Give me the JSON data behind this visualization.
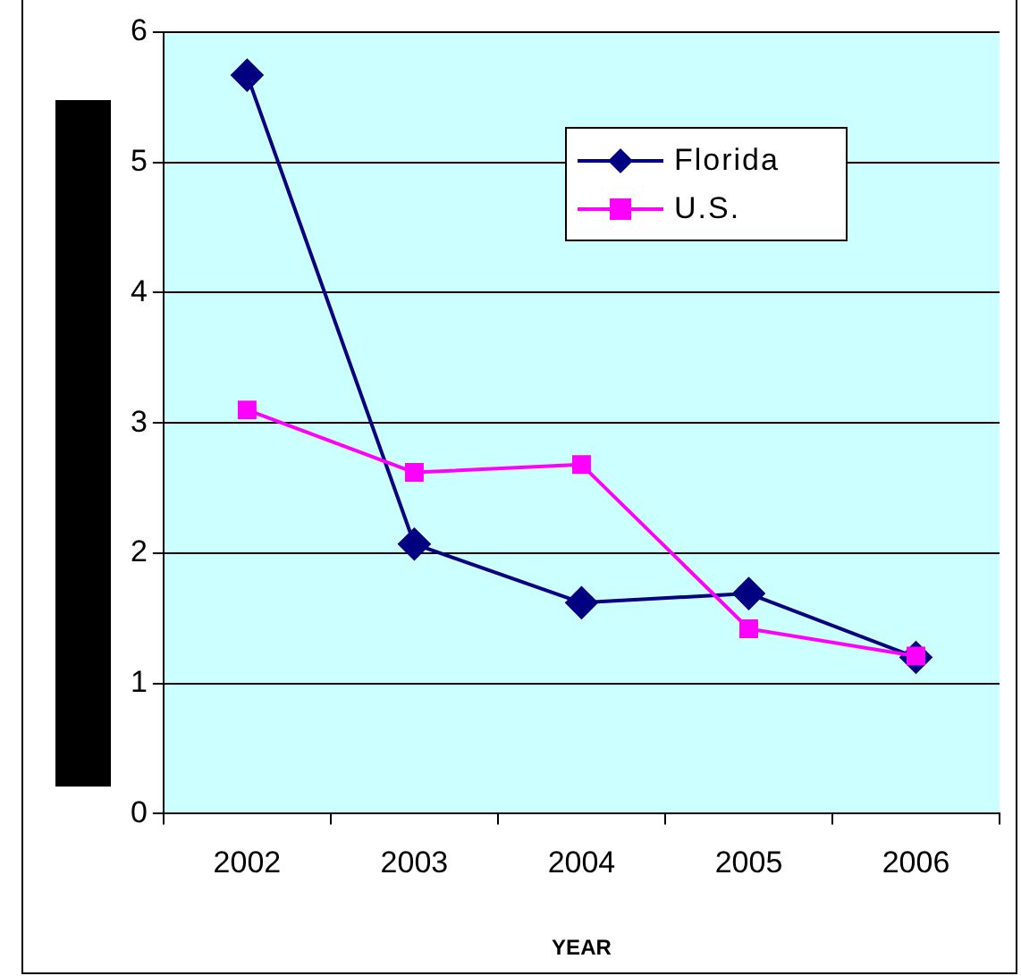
{
  "chart_data": {
    "type": "line",
    "xlabel": "YEAR",
    "categories": [
      "2002",
      "2003",
      "2004",
      "2005",
      "2006"
    ],
    "series": [
      {
        "name": "Florida",
        "color": "#000080",
        "marker": "diamond",
        "values": [
          5.67,
          2.07,
          1.62,
          1.69,
          1.2
        ]
      },
      {
        "name": "U.S.",
        "color": "#ff00ff",
        "marker": "square",
        "values": [
          3.1,
          2.62,
          2.68,
          1.42,
          1.21
        ]
      }
    ],
    "ylim": [
      0,
      6
    ],
    "yticks": [
      0,
      1,
      2,
      3,
      4,
      5,
      6
    ],
    "grid": "y",
    "legend": "top right",
    "line_style": "solid"
  }
}
